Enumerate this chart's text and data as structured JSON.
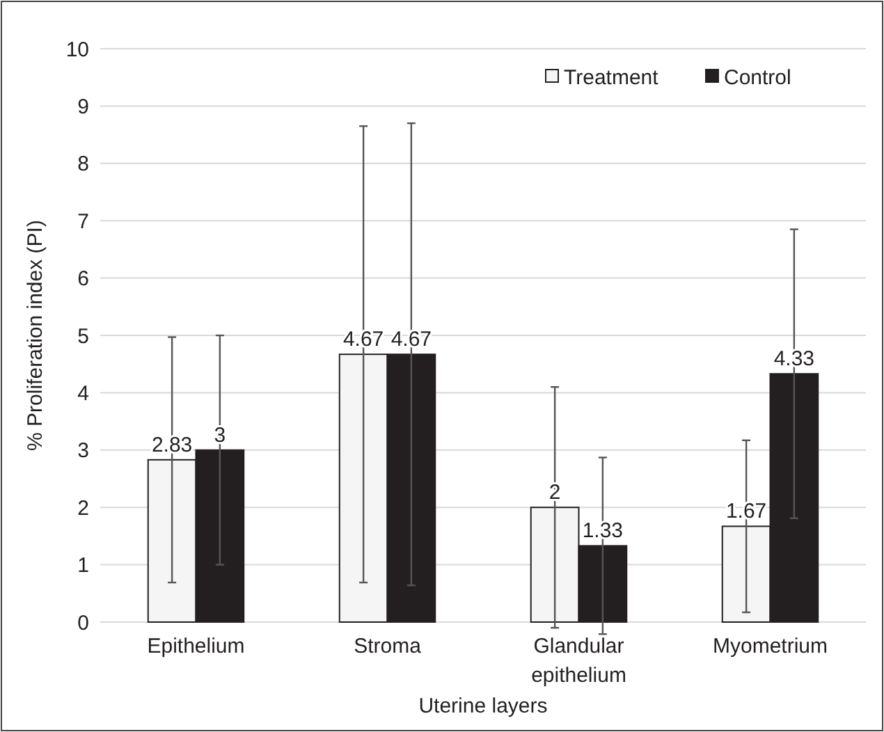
{
  "chart_data": {
    "type": "bar",
    "xlabel": "Uterine layers",
    "ylabel": "% Proliferation index (PI)",
    "categories": [
      "Epithelium",
      "Stroma",
      "Glandular epithelium",
      "Myometrium"
    ],
    "series": [
      {
        "name": "Treatment",
        "color": "#f5f5f5",
        "values": [
          2.83,
          4.67,
          2,
          1.67
        ],
        "errors": [
          2.14,
          3.98,
          2.1,
          1.5
        ]
      },
      {
        "name": "Control",
        "color": "#231f20",
        "values": [
          3,
          4.67,
          1.33,
          4.33
        ],
        "errors": [
          2,
          4.03,
          1.54,
          2.52
        ]
      }
    ],
    "ylim": [
      0,
      10
    ],
    "yticks": [
      0,
      1,
      2,
      3,
      4,
      5,
      6,
      7,
      8,
      9,
      10
    ],
    "grid": "y",
    "legend": "top right",
    "data_labels": true
  }
}
